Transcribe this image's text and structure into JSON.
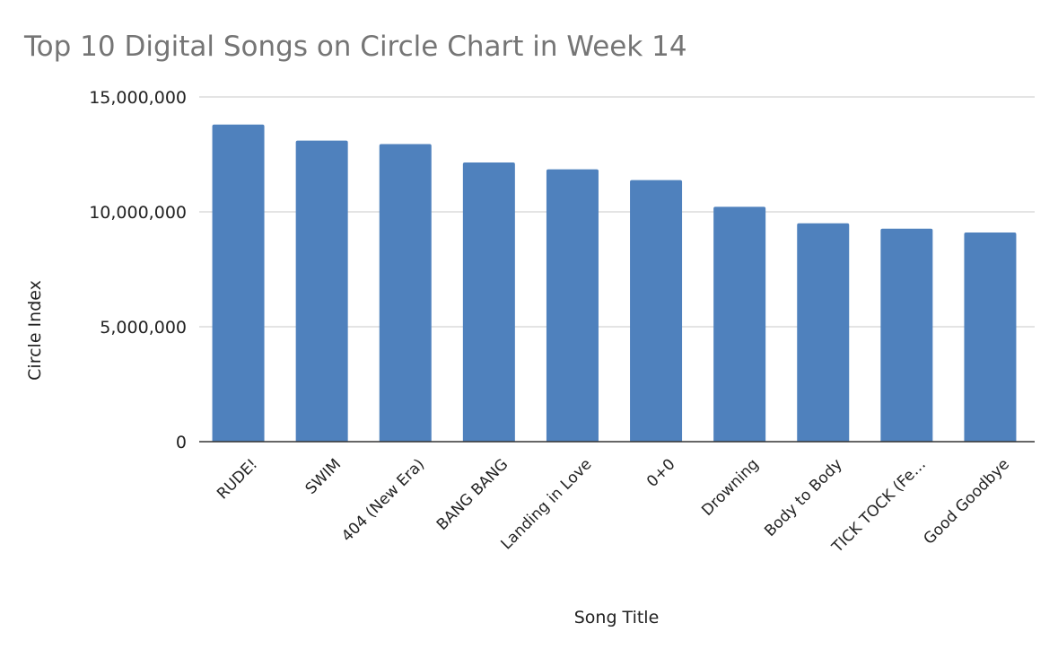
{
  "chart_data": {
    "type": "bar",
    "title": "Top 10 Digital Songs on Circle Chart in Week 14",
    "xlabel": "Song Title",
    "ylabel": "Circle Index",
    "categories": [
      "RUDE!",
      "SWIM",
      "404 (New Era)",
      "BANG BANG",
      "Landing in Love",
      "0+0",
      "Drowning",
      "Body to Body",
      "TICK TOCK (Fe…",
      "Good Goodbye"
    ],
    "values": [
      13800000,
      13100000,
      12950000,
      12150000,
      11850000,
      11380000,
      10220000,
      9500000,
      9270000,
      9100000
    ],
    "ylim": [
      0,
      15000000
    ],
    "yticks": [
      0,
      5000000,
      10000000,
      15000000
    ],
    "ytick_labels": [
      "0",
      "5,000,000",
      "10,000,000",
      "15,000,000"
    ],
    "bar_color": "#4f81bd",
    "grid": true,
    "legend": "none"
  }
}
